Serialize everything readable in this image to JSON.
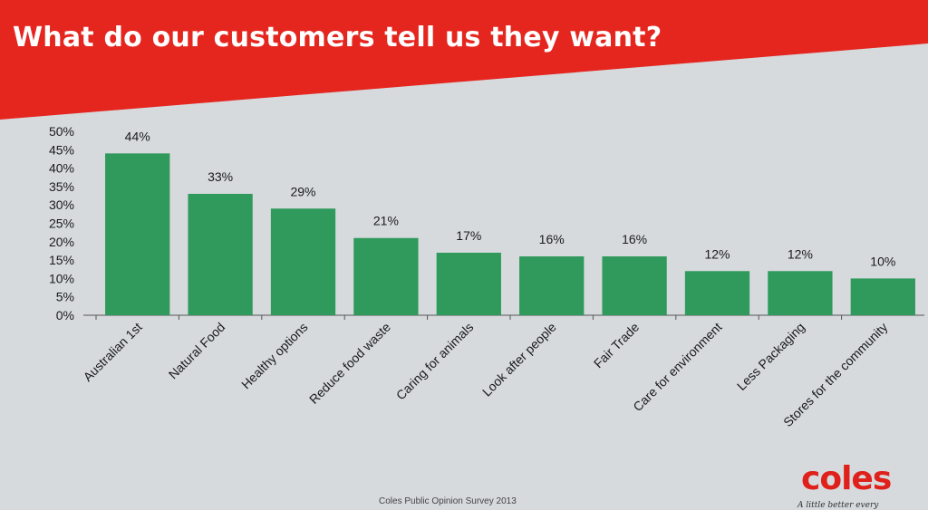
{
  "slide": {
    "title": "What do our customers tell us they want?",
    "footnote": "Coles Public Opinion Survey 2013",
    "logo_text": "coles",
    "tagline": "A little better every",
    "colors": {
      "header_red": "#e5261f",
      "bar_green": "#2f9a5b",
      "background": "#d6dadd"
    }
  },
  "chart_data": {
    "type": "bar",
    "categories": [
      "Australian 1st",
      "Natural Food",
      "Healthy options",
      "Reduce food waste",
      "Caring for animals",
      "Look after people",
      "Fair Trade",
      "Care for environment",
      "Less Packaging",
      "Stores for the community"
    ],
    "values": [
      44,
      33,
      29,
      21,
      17,
      16,
      16,
      12,
      12,
      10
    ],
    "data_labels": [
      "44%",
      "33%",
      "29%",
      "21%",
      "17%",
      "16%",
      "16%",
      "12%",
      "12%",
      "10%"
    ],
    "y_ticks": [
      "0%",
      "5%",
      "10%",
      "15%",
      "20%",
      "25%",
      "30%",
      "35%",
      "40%",
      "45%",
      "50%"
    ],
    "ylim": [
      0,
      50
    ],
    "title": "",
    "xlabel": "",
    "ylabel": "",
    "grid": false,
    "legend": "none"
  }
}
